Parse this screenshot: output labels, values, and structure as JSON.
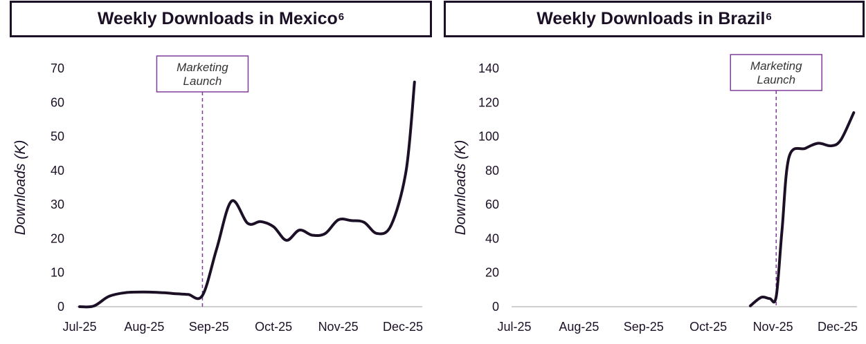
{
  "chart_data": [
    {
      "type": "line",
      "title": "Weekly Downloads in Mexico",
      "title_superscript": "6",
      "xlabel": "",
      "ylabel": "Downloads (K)",
      "ylim": [
        0,
        70
      ],
      "yticks": [
        0,
        10,
        20,
        30,
        40,
        50,
        60,
        70
      ],
      "xlim": [
        0,
        5.3
      ],
      "xticks": [
        {
          "label": "Jul-25",
          "value": 0
        },
        {
          "label": "Aug-25",
          "value": 1
        },
        {
          "label": "Sep-25",
          "value": 2
        },
        {
          "label": "Oct-25",
          "value": 3
        },
        {
          "label": "Nov-25",
          "value": 4
        },
        {
          "label": "Dec-25",
          "value": 5
        }
      ],
      "grid": false,
      "color": "#1c1026",
      "series": [
        {
          "name": "Mexico",
          "x": [
            0,
            0.22,
            0.45,
            0.7,
            1.0,
            1.3,
            1.5,
            1.68,
            1.9,
            2.12,
            2.35,
            2.6,
            2.8,
            3.0,
            3.2,
            3.4,
            3.6,
            3.8,
            4.0,
            4.2,
            4.4,
            4.6,
            4.82,
            5.05,
            5.18
          ],
          "values": [
            0,
            0.2,
            3.0,
            4.1,
            4.3,
            4.1,
            3.8,
            3.6,
            3.3,
            17.0,
            31.0,
            24.5,
            25.0,
            23.5,
            19.5,
            22.5,
            21.0,
            21.5,
            25.5,
            25.3,
            24.8,
            21.5,
            24.0,
            40.0,
            66.0
          ]
        }
      ],
      "annotation": {
        "text_lines": [
          "Marketing",
          "Launch"
        ],
        "x": 1.9
      }
    },
    {
      "type": "line",
      "title": "Weekly Downloads in Brazil",
      "title_superscript": "6",
      "xlabel": "",
      "ylabel": "Downloads (K)",
      "ylim": [
        0,
        140
      ],
      "yticks": [
        0,
        20,
        40,
        60,
        80,
        100,
        120,
        140
      ],
      "xlim": [
        0,
        5.3
      ],
      "xticks": [
        {
          "label": "Jul-25",
          "value": 0
        },
        {
          "label": "Aug-25",
          "value": 1
        },
        {
          "label": "Sep-25",
          "value": 2
        },
        {
          "label": "Oct-25",
          "value": 3
        },
        {
          "label": "Nov-25",
          "value": 4
        },
        {
          "label": "Dec-25",
          "value": 5
        }
      ],
      "grid": false,
      "color": "#1c1026",
      "series": [
        {
          "name": "Brazil",
          "x": [
            3.65,
            3.82,
            3.95,
            4.05,
            4.14,
            4.25,
            4.5,
            4.7,
            4.9,
            5.05,
            5.25
          ],
          "values": [
            0.5,
            5.5,
            4.8,
            6.0,
            45.0,
            88.0,
            93.0,
            96.0,
            94.5,
            98.0,
            114.0
          ]
        }
      ],
      "annotation": {
        "text_lines": [
          "Marketing",
          "Launch"
        ],
        "x": 4.05
      }
    }
  ]
}
